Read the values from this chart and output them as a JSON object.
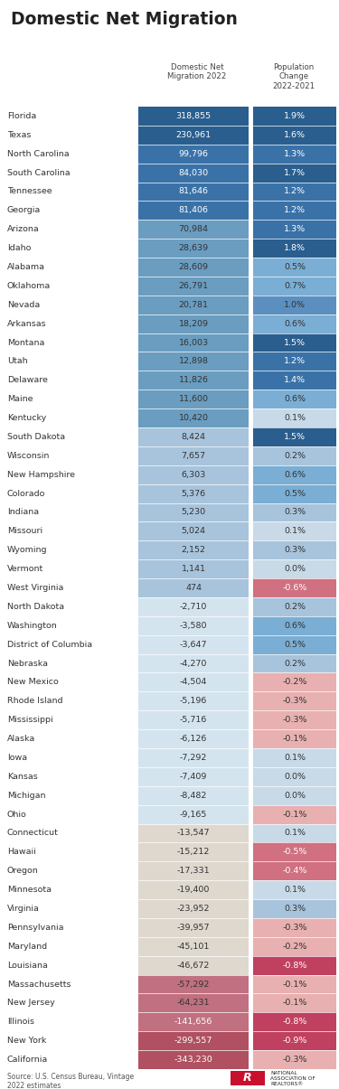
{
  "title": "Domestic Net Migration",
  "subtitle_col1": "Domestic Net\nMigration 2022",
  "subtitle_col2": "Population\nChange\n2022-2021",
  "source": "Source: U.S. Census Bureau, Vintage\n2022 estimates",
  "states": [
    "Florida",
    "Texas",
    "North Carolina",
    "South Carolina",
    "Tennessee",
    "Georgia",
    "Arizona",
    "Idaho",
    "Alabama",
    "Oklahoma",
    "Nevada",
    "Arkansas",
    "Montana",
    "Utah",
    "Delaware",
    "Maine",
    "Kentucky",
    "South Dakota",
    "Wisconsin",
    "New Hampshire",
    "Colorado",
    "Indiana",
    "Missouri",
    "Wyoming",
    "Vermont",
    "West Virginia",
    "North Dakota",
    "Washington",
    "District of Columbia",
    "Nebraska",
    "New Mexico",
    "Rhode Island",
    "Mississippi",
    "Alaska",
    "Iowa",
    "Kansas",
    "Michigan",
    "Ohio",
    "Connecticut",
    "Hawaii",
    "Oregon",
    "Minnesota",
    "Virginia",
    "Pennsylvania",
    "Maryland",
    "Louisiana",
    "Massachusetts",
    "New Jersey",
    "Illinois",
    "New York",
    "California"
  ],
  "migration": [
    318855,
    230961,
    99796,
    84030,
    81646,
    81406,
    70984,
    28639,
    28609,
    26791,
    20781,
    18209,
    16003,
    12898,
    11826,
    11600,
    10420,
    8424,
    7657,
    6303,
    5376,
    5230,
    5024,
    2152,
    1141,
    474,
    -2710,
    -3580,
    -3647,
    -4270,
    -4504,
    -5196,
    -5716,
    -6126,
    -7292,
    -7409,
    -8482,
    -9165,
    -13547,
    -15212,
    -17331,
    -19400,
    -23952,
    -39957,
    -45101,
    -46672,
    -57292,
    -64231,
    -141656,
    -299557,
    -343230
  ],
  "pop_change": [
    1.9,
    1.6,
    1.3,
    1.7,
    1.2,
    1.2,
    1.3,
    1.8,
    0.5,
    0.7,
    1.0,
    0.6,
    1.5,
    1.2,
    1.4,
    0.6,
    0.1,
    1.5,
    0.2,
    0.6,
    0.5,
    0.3,
    0.1,
    0.3,
    0.0,
    -0.6,
    0.2,
    0.6,
    0.5,
    0.2,
    -0.2,
    -0.3,
    -0.3,
    -0.1,
    0.1,
    0.0,
    0.0,
    -0.1,
    0.1,
    -0.5,
    -0.4,
    0.1,
    0.3,
    -0.3,
    -0.2,
    -0.8,
    -0.1,
    -0.1,
    -0.8,
    -0.9,
    -0.3
  ]
}
